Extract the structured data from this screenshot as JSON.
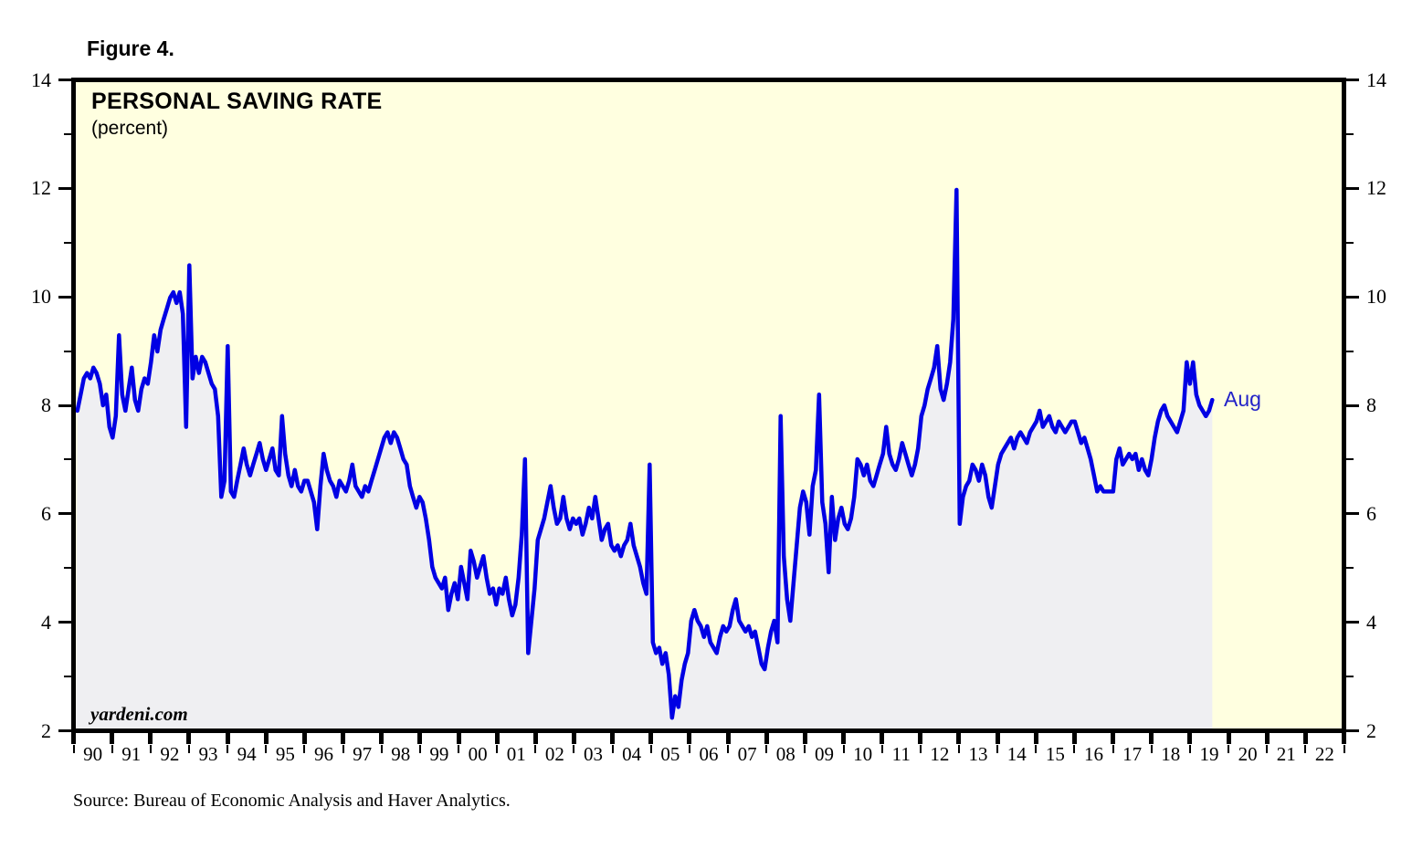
{
  "figure_label": "Figure 4.",
  "header": {
    "title": "PERSONAL SAVING RATE",
    "subtitle": "(percent)"
  },
  "watermark": "yardeni.com",
  "source_note": "Source: Bureau of Economic Analysis and Haver Analytics.",
  "annotations": {
    "last_point_label": "Aug"
  },
  "colors": {
    "plot_background": "#FFFFE0",
    "area_fill": "#EFEFF2",
    "line": "#0000E4",
    "annotation_blue": "#2323C8",
    "axis": "#000000"
  },
  "chart_data": {
    "type": "line",
    "title": "PERSONAL SAVING RATE",
    "subtitle": "(percent)",
    "xlabel": "",
    "ylabel": "",
    "ylim": [
      2,
      14
    ],
    "xlim_years": [
      1990,
      2023
    ],
    "grid": false,
    "legend": "none",
    "y_ticks_major": [
      2,
      4,
      6,
      8,
      10,
      12,
      14
    ],
    "y_ticks_minor": [
      3,
      5,
      7,
      9,
      11,
      13
    ],
    "y_axis_sides": [
      "left",
      "right"
    ],
    "x_year_labels": [
      "90",
      "91",
      "92",
      "93",
      "94",
      "95",
      "96",
      "97",
      "98",
      "99",
      "00",
      "01",
      "02",
      "03",
      "04",
      "05",
      "06",
      "07",
      "08",
      "09",
      "10",
      "11",
      "12",
      "13",
      "14",
      "15",
      "16",
      "17",
      "18",
      "19",
      "20",
      "21",
      "22"
    ],
    "series": [
      {
        "name": "Personal Saving Rate (percent, monthly)",
        "start": "1990-01",
        "end": "2019-08",
        "last_value": 8.1,
        "last_point_label": "Aug",
        "monthly_values": [
          7.9,
          8.2,
          8.5,
          8.6,
          8.5,
          8.7,
          8.6,
          8.4,
          8.0,
          8.2,
          7.6,
          7.4,
          7.8,
          9.3,
          8.2,
          7.9,
          8.3,
          8.7,
          8.1,
          7.9,
          8.3,
          8.5,
          8.4,
          8.8,
          9.3,
          9.0,
          9.4,
          9.6,
          9.8,
          10.0,
          10.1,
          9.9,
          10.1,
          9.7,
          7.6,
          10.6,
          8.5,
          8.9,
          8.6,
          8.9,
          8.8,
          8.6,
          8.4,
          8.3,
          7.8,
          6.3,
          6.6,
          9.1,
          6.4,
          6.3,
          6.6,
          6.9,
          7.2,
          6.9,
          6.7,
          6.9,
          7.1,
          7.3,
          7.0,
          6.8,
          7.0,
          7.2,
          6.8,
          6.7,
          7.8,
          7.1,
          6.7,
          6.5,
          6.8,
          6.5,
          6.4,
          6.6,
          6.6,
          6.4,
          6.2,
          5.7,
          6.5,
          7.1,
          6.8,
          6.6,
          6.5,
          6.3,
          6.6,
          6.5,
          6.4,
          6.6,
          6.9,
          6.5,
          6.4,
          6.3,
          6.5,
          6.4,
          6.6,
          6.8,
          7.0,
          7.2,
          7.4,
          7.5,
          7.3,
          7.5,
          7.4,
          7.2,
          7.0,
          6.9,
          6.5,
          6.3,
          6.1,
          6.3,
          6.2,
          5.9,
          5.5,
          5.0,
          4.8,
          4.7,
          4.6,
          4.8,
          4.2,
          4.5,
          4.7,
          4.4,
          5.0,
          4.7,
          4.4,
          5.3,
          5.1,
          4.8,
          5.0,
          5.2,
          4.8,
          4.5,
          4.6,
          4.3,
          4.6,
          4.5,
          4.8,
          4.4,
          4.1,
          4.3,
          4.8,
          5.6,
          7.0,
          3.4,
          4.0,
          4.6,
          5.5,
          5.7,
          5.9,
          6.2,
          6.5,
          6.1,
          5.8,
          5.9,
          6.3,
          5.9,
          5.7,
          5.9,
          5.8,
          5.9,
          5.6,
          5.8,
          6.1,
          5.9,
          6.3,
          5.9,
          5.5,
          5.7,
          5.8,
          5.4,
          5.3,
          5.4,
          5.2,
          5.4,
          5.5,
          5.8,
          5.4,
          5.2,
          5.0,
          4.7,
          4.5,
          6.9,
          3.6,
          3.4,
          3.5,
          3.2,
          3.4,
          3.0,
          2.2,
          2.6,
          2.4,
          2.9,
          3.2,
          3.4,
          4.0,
          4.2,
          4.0,
          3.9,
          3.7,
          3.9,
          3.6,
          3.5,
          3.4,
          3.7,
          3.9,
          3.8,
          3.9,
          4.2,
          4.4,
          4.0,
          3.9,
          3.8,
          3.9,
          3.7,
          3.8,
          3.5,
          3.2,
          3.1,
          3.5,
          3.8,
          4.0,
          3.6,
          7.8,
          5.2,
          4.4,
          4.0,
          4.7,
          5.4,
          6.1,
          6.4,
          6.2,
          5.6,
          6.5,
          6.8,
          8.2,
          6.2,
          5.8,
          4.9,
          6.3,
          5.5,
          5.9,
          6.1,
          5.8,
          5.7,
          5.9,
          6.3,
          7.0,
          6.9,
          6.7,
          6.9,
          6.6,
          6.5,
          6.7,
          6.9,
          7.1,
          7.6,
          7.1,
          6.9,
          6.8,
          7.0,
          7.3,
          7.1,
          6.9,
          6.7,
          6.9,
          7.2,
          7.8,
          8.0,
          8.3,
          8.5,
          8.7,
          9.1,
          8.3,
          8.1,
          8.4,
          8.8,
          9.6,
          12.0,
          5.8,
          6.3,
          6.5,
          6.6,
          6.9,
          6.8,
          6.6,
          6.9,
          6.7,
          6.3,
          6.1,
          6.5,
          6.9,
          7.1,
          7.2,
          7.3,
          7.4,
          7.2,
          7.4,
          7.5,
          7.4,
          7.3,
          7.5,
          7.6,
          7.7,
          7.9,
          7.6,
          7.7,
          7.8,
          7.6,
          7.5,
          7.7,
          7.6,
          7.5,
          7.6,
          7.7,
          7.7,
          7.5,
          7.3,
          7.4,
          7.2,
          7.0,
          6.7,
          6.4,
          6.5,
          6.4,
          6.4,
          6.4,
          6.4,
          7.0,
          7.2,
          6.9,
          7.0,
          7.1,
          7.0,
          7.1,
          6.8,
          7.0,
          6.8,
          6.7,
          7.0,
          7.4,
          7.7,
          7.9,
          8.0,
          7.8,
          7.7,
          7.6,
          7.5,
          7.7,
          7.9,
          8.8,
          8.4,
          8.8,
          8.2,
          8.0,
          7.9,
          7.8,
          7.9,
          8.1
        ]
      }
    ]
  }
}
